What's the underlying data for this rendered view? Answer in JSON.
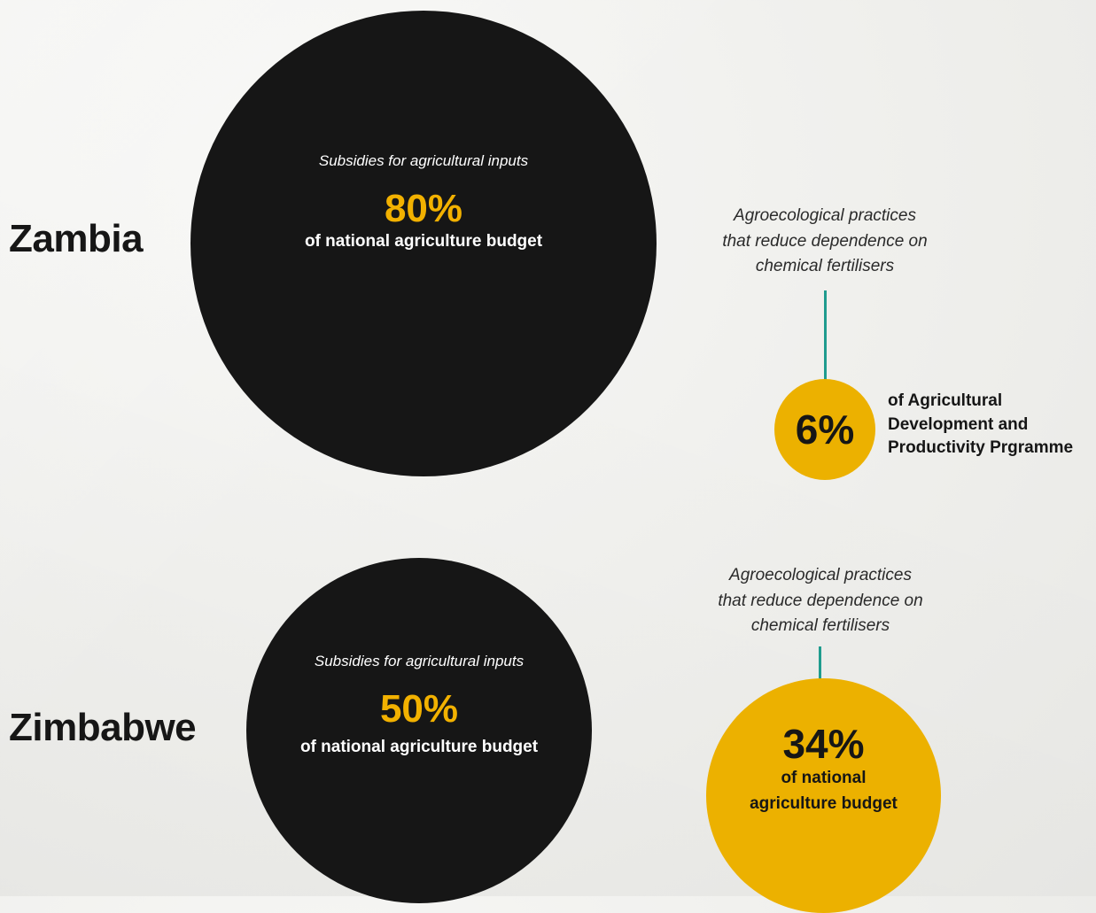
{
  "chart_data": [
    {
      "type": "bubble",
      "country": "Zambia",
      "series": [
        {
          "name": "Subsidies for agricultural inputs",
          "value": 80,
          "value_label": "80%",
          "unit_note": "of national agriculture budget",
          "color": "#161616"
        },
        {
          "name": "Agroecological practices that reduce dependence on chemical fertilisers",
          "value": 6,
          "value_label": "6%",
          "unit_note": "of Agricultural Development and Productivity Prgramme",
          "color": "#ecb100"
        }
      ]
    },
    {
      "type": "bubble",
      "country": "Zimbabwe",
      "series": [
        {
          "name": "Subsidies for agricultural inputs",
          "value": 50,
          "value_label": "50%",
          "unit_note": "of national agriculture budget",
          "color": "#161616"
        },
        {
          "name": "Agroecological practices that reduce dependence on chemical fertilisers",
          "value": 34,
          "value_label": "34%",
          "unit_note": "of national agriculture budget",
          "color": "#ecb100"
        }
      ]
    }
  ],
  "zambia": {
    "country": "Zambia",
    "subsidy_caption": "Subsidies for agricultural inputs",
    "subsidy_value": "80%",
    "subsidy_note": "of national agriculture budget",
    "agro_caption_line1": "Agroecological practices",
    "agro_caption_line2": "that reduce dependence on",
    "agro_caption_line3": "chemical fertilisers",
    "agro_value": "6%",
    "agro_note_line1": "of Agricultural",
    "agro_note_line2": "Development and",
    "agro_note_line3": "Productivity Prgramme"
  },
  "zimbabwe": {
    "country": "Zimbabwe",
    "subsidy_caption": "Subsidies for agricultural inputs",
    "subsidy_value": "50%",
    "subsidy_note": "of national agriculture budget",
    "agro_caption_line1": "Agroecological practices",
    "agro_caption_line2": "that reduce dependence on",
    "agro_caption_line3": "chemical fertilisers",
    "agro_value": "34%",
    "agro_note_line1": "of national",
    "agro_note_line2": "agriculture budget"
  },
  "colors": {
    "subsidy_circle": "#161616",
    "agro_circle": "#ecb100",
    "highlight_text": "#f2b100",
    "connector": "#1f9c8e",
    "background": "#efefec"
  }
}
